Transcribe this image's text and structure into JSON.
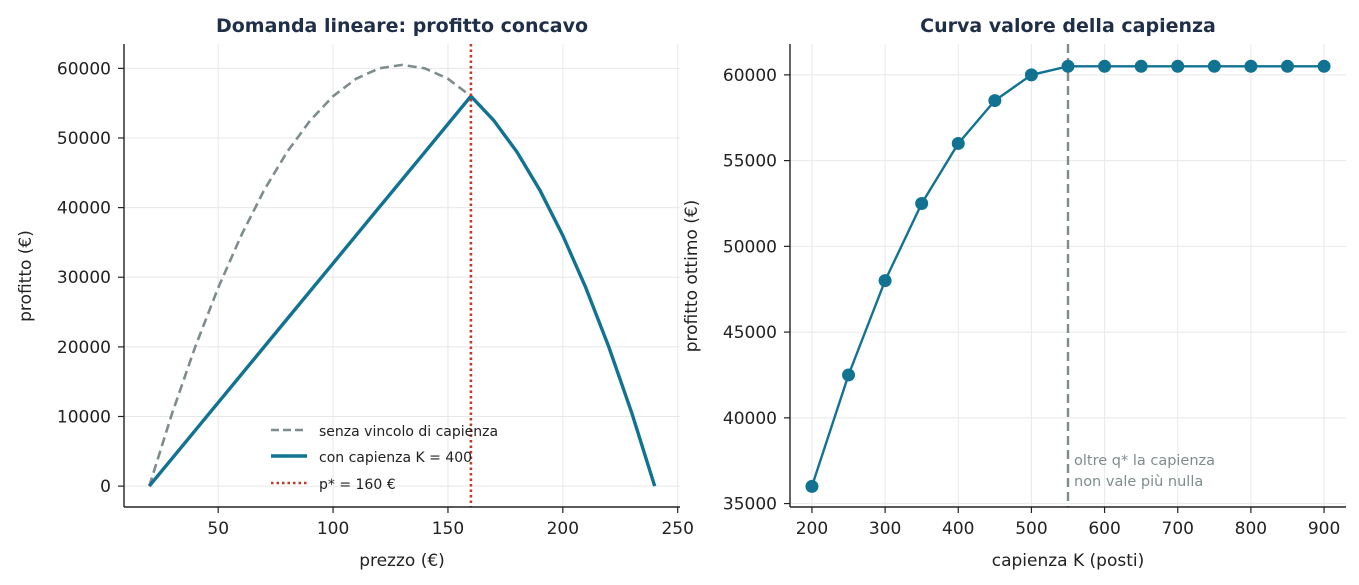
{
  "chart_data": [
    {
      "type": "line",
      "title": "Domanda lineare: profitto concavo",
      "xlabel": "prezzo (€)",
      "ylabel": "profitto (€)",
      "xlim": [
        9,
        251
      ],
      "ylim": [
        -3000,
        63500
      ],
      "xticks": [
        50,
        100,
        150,
        200,
        250
      ],
      "yticks": [
        0,
        10000,
        20000,
        30000,
        40000,
        50000,
        60000
      ],
      "grid": true,
      "legend_position": "lower-center",
      "series": [
        {
          "name": "senza vincolo di capienza",
          "color": "#7f8c8d",
          "style": "dashed",
          "x": [
            20,
            30,
            40,
            50,
            60,
            70,
            80,
            90,
            100,
            110,
            120,
            130,
            140,
            150,
            160
          ],
          "y": [
            0,
            10500,
            20000,
            28500,
            36000,
            42500,
            48000,
            52500,
            56000,
            58500,
            60000,
            60500,
            60000,
            58500,
            56000
          ]
        },
        {
          "name": "con capienza K = 400",
          "color": "#117391",
          "style": "solid",
          "x": [
            20,
            40,
            60,
            80,
            100,
            120,
            140,
            160,
            170,
            180,
            190,
            200,
            210,
            220,
            230,
            240
          ],
          "y": [
            0,
            8000,
            16000,
            24000,
            32000,
            40000,
            48000,
            56000,
            52500,
            48000,
            42500,
            36000,
            28500,
            20000,
            10500,
            0
          ]
        }
      ],
      "reference_lines": [
        {
          "name": "p* = 160 €",
          "x": 160,
          "color": "#c0392b",
          "style": "dotted"
        }
      ]
    },
    {
      "type": "line",
      "title": "Curva valore della capienza",
      "xlabel": "capienza K (posti)",
      "ylabel": "profitto ottimo (€)",
      "xlim": [
        170,
        930
      ],
      "ylim": [
        34800,
        61800
      ],
      "xticks": [
        200,
        300,
        400,
        500,
        600,
        700,
        800,
        900
      ],
      "yticks": [
        35000,
        40000,
        45000,
        50000,
        55000,
        60000
      ],
      "grid": true,
      "series": [
        {
          "color": "#117391",
          "style": "solid-markers",
          "x": [
            200,
            250,
            300,
            350,
            400,
            450,
            500,
            550,
            600,
            650,
            700,
            750,
            800,
            850,
            900
          ],
          "y": [
            36000,
            42500,
            48000,
            52500,
            56000,
            58500,
            60000,
            60500,
            60500,
            60500,
            60500,
            60500,
            60500,
            60500,
            60500
          ]
        }
      ],
      "reference_lines": [
        {
          "x": 550,
          "color": "#7f8c8d",
          "style": "dashed"
        }
      ],
      "annotation": [
        "oltre q* la capienza",
        "non vale più nulla"
      ]
    }
  ]
}
